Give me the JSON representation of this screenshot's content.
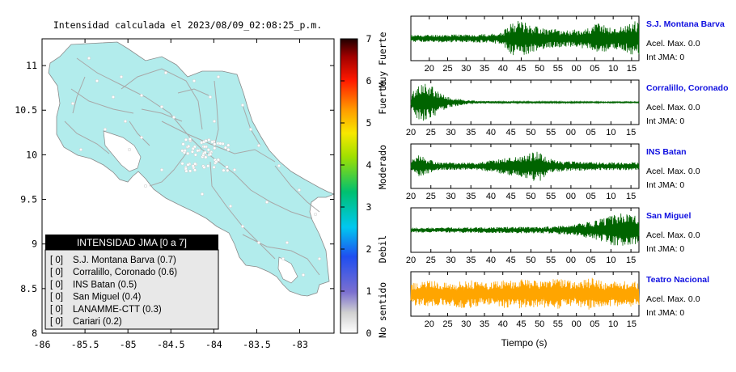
{
  "map": {
    "title": "Intensidad calculada el 2023/08/09_02:08:25_p.m.",
    "x_ticks": [
      "-86",
      "-85.5",
      "-85",
      "-84.5",
      "-84",
      "-83.5",
      "-83"
    ],
    "y_ticks": [
      "11",
      "10.5",
      "10",
      "9.5",
      "9",
      "8.5",
      "8"
    ],
    "x_range": [
      -86,
      -82.6
    ],
    "y_range": [
      8,
      11.3
    ],
    "land_color": "#b2ecec"
  },
  "colorbar": {
    "ticks": [
      "0",
      "1",
      "2",
      "3",
      "4",
      "5",
      "6",
      "7"
    ],
    "labels": [
      "No sentido",
      "Debil",
      "Moderado",
      "Fuerte",
      "Muy Fuerte"
    ],
    "range": [
      0,
      7
    ]
  },
  "legend": {
    "title": "INTENSIDAD JMA [0 a 7]",
    "items": [
      {
        "badge": "[ 0]",
        "text": "S.J. Montana Barva (0.7)"
      },
      {
        "badge": "[ 0]",
        "text": "Corralillo, Coronado (0.6)"
      },
      {
        "badge": "[ 0]",
        "text": "INS Batan (0.5)"
      },
      {
        "badge": "[ 0]",
        "text": "San Miguel (0.4)"
      },
      {
        "badge": "[ 0]",
        "text": "LANAMME-CTT (0.3)"
      },
      {
        "badge": "[ 0]",
        "text": "Cariari (0.2)"
      }
    ]
  },
  "chart_data": {
    "type": "line",
    "xlabel": "Tiempo (s)",
    "x_ticks": [
      "20",
      "25",
      "30",
      "35",
      "40",
      "45",
      "50",
      "55",
      "00",
      "05",
      "10",
      "15"
    ],
    "series": [
      {
        "name": "S.J. Montana Barva",
        "accel": "Acel. Max. 0.0",
        "jma": "Int JMA: 0",
        "color": "#006400",
        "x_start": 15,
        "envelope": [
          [
            15,
            0.18
          ],
          [
            36,
            0.22
          ],
          [
            40,
            0.3
          ],
          [
            42,
            0.85
          ],
          [
            45,
            0.95
          ],
          [
            48,
            0.7
          ],
          [
            52,
            0.5
          ],
          [
            58,
            0.42
          ],
          [
            64,
            0.55
          ],
          [
            66,
            0.85
          ],
          [
            70,
            0.5
          ],
          [
            74,
            0.75
          ],
          [
            76,
            0.9
          ],
          [
            80,
            0.55
          ],
          [
            85,
            0.65
          ],
          [
            92,
            0.55
          ]
        ]
      },
      {
        "name": "Corralillo, Coronado",
        "accel": "Acel. Max. 0.0",
        "jma": "Int JMA: 0",
        "color": "#006400",
        "x_start": 20,
        "envelope": [
          [
            20,
            0.25
          ],
          [
            21,
            0.75
          ],
          [
            23,
            1.0
          ],
          [
            25,
            0.9
          ],
          [
            27,
            0.5
          ],
          [
            30,
            0.25
          ],
          [
            34,
            0.1
          ],
          [
            40,
            0.06
          ],
          [
            55,
            0.04
          ],
          [
            78,
            0.03
          ]
        ]
      },
      {
        "name": "INS Batan",
        "accel": "Acel. Max. 0.0",
        "jma": "Int JMA: 0",
        "color": "#006400",
        "x_start": 20,
        "envelope": [
          [
            20,
            0.3
          ],
          [
            22,
            0.55
          ],
          [
            24,
            0.4
          ],
          [
            27,
            0.2
          ],
          [
            36,
            0.18
          ],
          [
            40,
            0.3
          ],
          [
            44,
            0.45
          ],
          [
            48,
            0.55
          ],
          [
            52,
            0.85
          ],
          [
            54,
            0.4
          ],
          [
            58,
            0.25
          ],
          [
            70,
            0.2
          ],
          [
            78,
            0.2
          ]
        ]
      },
      {
        "name": "San Miguel",
        "accel": "Acel. Max. 0.0",
        "jma": "Int JMA: 0",
        "color": "#006400",
        "x_start": 20,
        "envelope": [
          [
            20,
            0.12
          ],
          [
            40,
            0.15
          ],
          [
            55,
            0.18
          ],
          [
            60,
            0.25
          ],
          [
            64,
            0.4
          ],
          [
            68,
            0.6
          ],
          [
            70,
            0.75
          ],
          [
            72,
            0.9
          ],
          [
            74,
            0.8
          ],
          [
            78,
            0.7
          ]
        ]
      },
      {
        "name": "Teatro Nacional",
        "accel": "Acel. Max. 0.0",
        "jma": "Int JMA: 0",
        "color": "#ffa500",
        "x_start": 15,
        "envelope": [
          [
            15,
            0.55
          ],
          [
            20,
            0.7
          ],
          [
            25,
            0.6
          ],
          [
            30,
            0.75
          ],
          [
            35,
            0.55
          ],
          [
            40,
            0.7
          ],
          [
            45,
            0.75
          ],
          [
            50,
            0.65
          ],
          [
            55,
            0.8
          ],
          [
            60,
            0.6
          ],
          [
            64,
            0.85
          ],
          [
            68,
            0.6
          ],
          [
            72,
            0.7
          ],
          [
            76,
            0.65
          ],
          [
            80,
            0.6
          ],
          [
            92,
            0.55
          ]
        ]
      }
    ]
  }
}
